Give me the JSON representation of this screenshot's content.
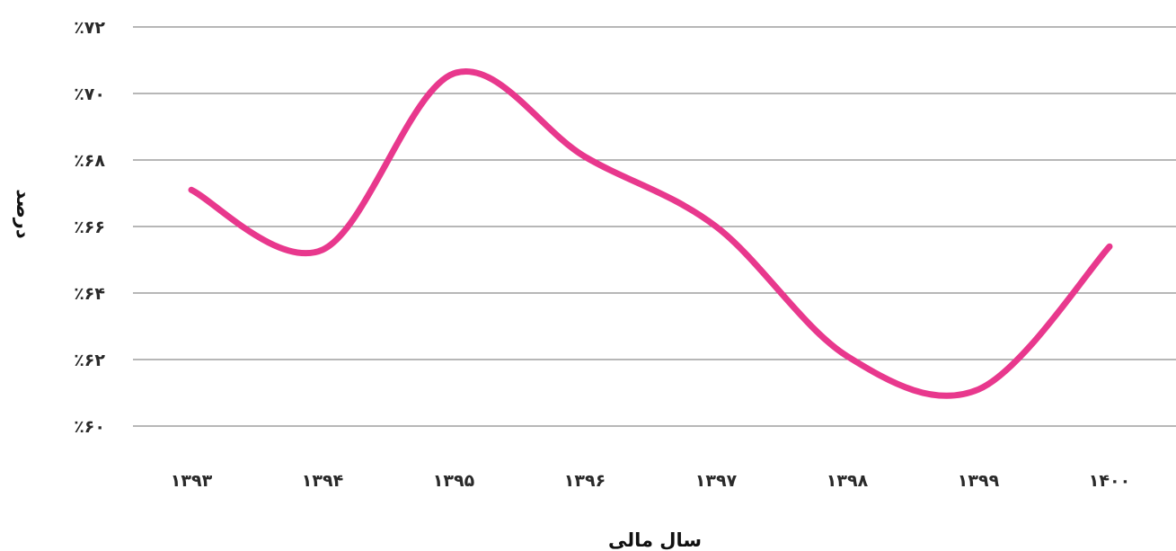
{
  "chart_data": {
    "type": "line",
    "xlabel": "سال مالی",
    "ylabel": "درصد",
    "categories": [
      "۱۳۹۳",
      "۱۳۹۴",
      "۱۳۹۵",
      "۱۳۹۶",
      "۱۳۹۷",
      "۱۳۹۸",
      "۱۳۹۹",
      "۱۴۰۰"
    ],
    "values": [
      67.1,
      65.3,
      70.6,
      68.1,
      66.0,
      62.1,
      61.1,
      65.4
    ],
    "ylim": [
      60,
      72
    ],
    "yticks": [
      60,
      62,
      64,
      66,
      68,
      70,
      72
    ],
    "ytick_labels": [
      "٪۶۰",
      "٪۶۲",
      "٪۶۴",
      "٪۶۶",
      "٪۶۸",
      "٪۷۰",
      "٪۷۲"
    ],
    "grid": true,
    "line_color": "#e8388d",
    "grid_color": "#8c8c8c"
  }
}
